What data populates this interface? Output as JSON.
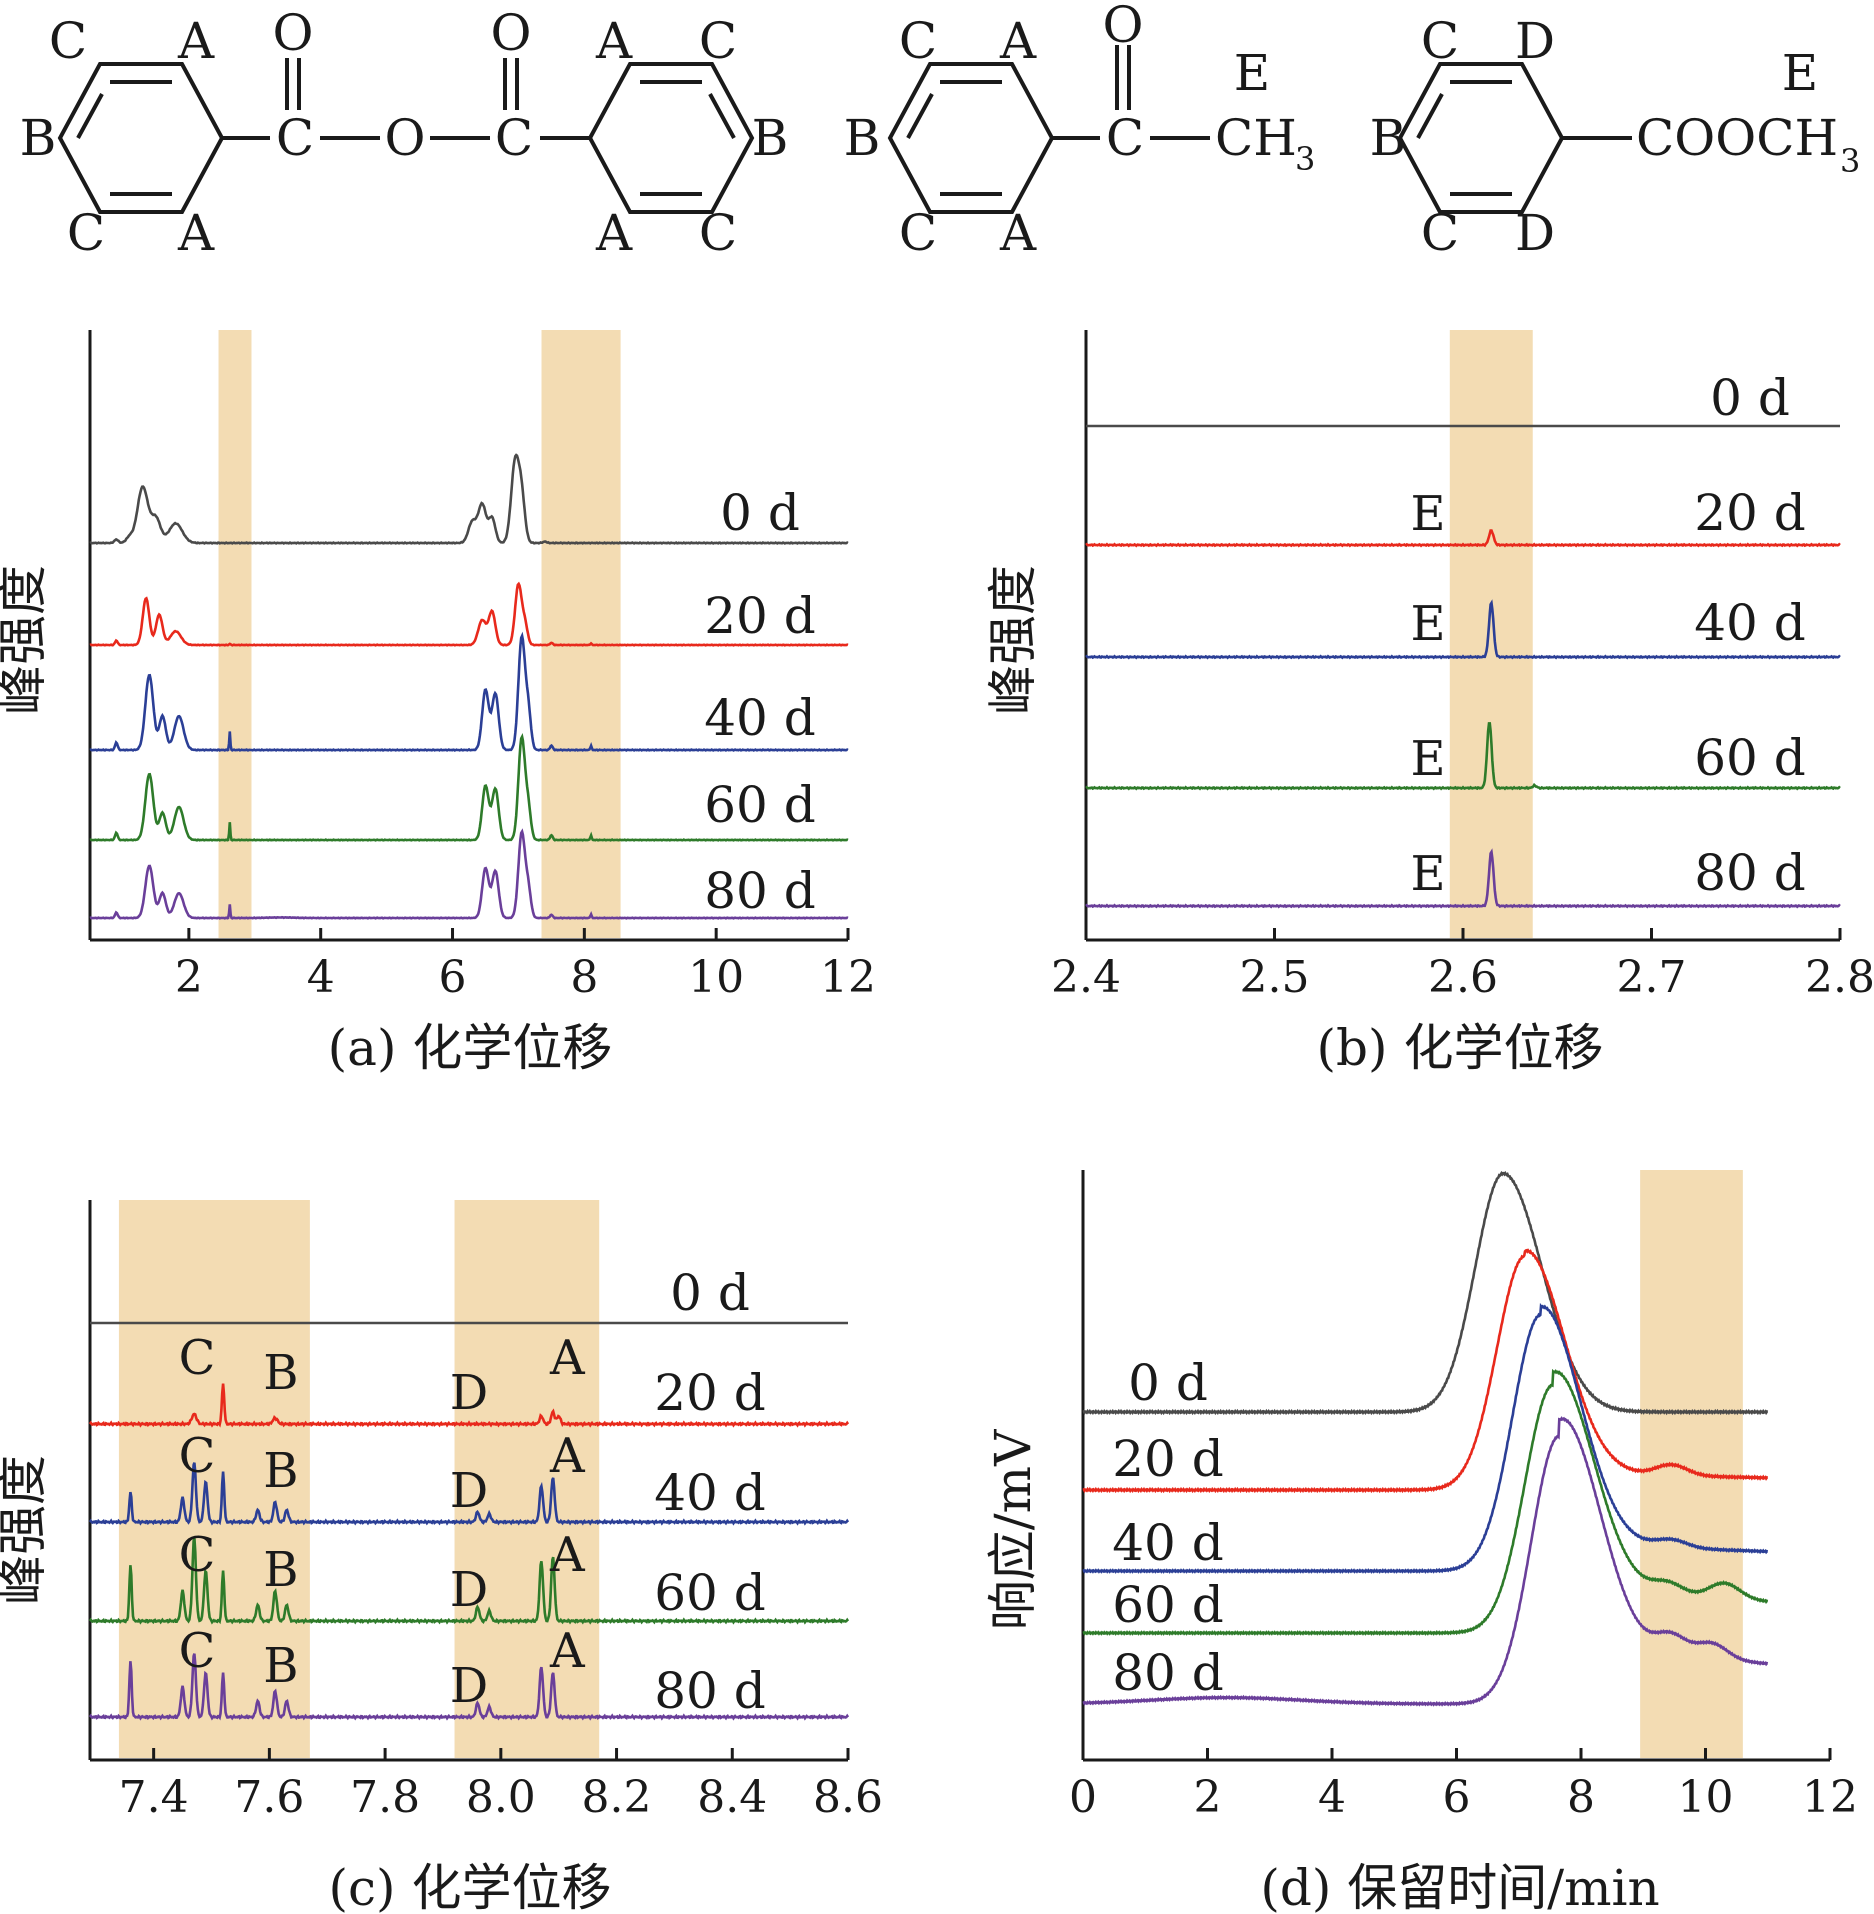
{
  "structures": [
    {
      "letters": [
        "C",
        "A",
        "B",
        "C",
        "A",
        "O",
        "O",
        "A",
        "C",
        "B",
        "A",
        "C"
      ],
      "atoms": [
        "C",
        "O",
        "C"
      ],
      "name": "benzoic-anhydride"
    },
    {
      "letters": [
        "C",
        "A",
        "B",
        "C",
        "A",
        "O",
        "E"
      ],
      "atoms": [
        "C",
        "CH",
        "3"
      ],
      "name": "acetophenone"
    },
    {
      "letters": [
        "C",
        "D",
        "B",
        "C",
        "D",
        "E"
      ],
      "atoms": [
        "COOCH",
        "3"
      ],
      "name": "methyl-benzoate"
    }
  ],
  "chart_data": [
    {
      "id": "a",
      "type": "line",
      "xlabel": "(a) 化学位移",
      "ylabel": "峰强度",
      "xlim": [
        0.5,
        12
      ],
      "xticks": [
        "2",
        "4",
        "6",
        "8",
        "10",
        "12"
      ],
      "xtick_values": [
        2,
        4,
        6,
        8,
        10,
        12
      ],
      "highlight_ranges": [
        [
          2.45,
          2.95
        ],
        [
          7.35,
          8.55
        ]
      ],
      "series": [
        {
          "name": "0 d",
          "color": "#4a4a4a",
          "offset": 0.0,
          "peaks": [
            [
              0.9,
              0.05,
              0.03
            ],
            [
              1.1,
              0.08,
              0.05
            ],
            [
              1.3,
              0.8,
              0.08
            ],
            [
              1.5,
              0.35,
              0.07
            ],
            [
              1.8,
              0.28,
              0.1
            ],
            [
              6.3,
              0.3,
              0.06
            ],
            [
              6.45,
              0.55,
              0.06
            ],
            [
              6.6,
              0.35,
              0.05
            ],
            [
              6.95,
              1.15,
              0.06
            ],
            [
              7.05,
              0.6,
              0.05
            ],
            [
              7.4,
              0.02,
              0.03
            ]
          ]
        },
        {
          "name": "20 d",
          "color": "#e8291c",
          "offset": 0.0,
          "peaks": [
            [
              0.9,
              0.08,
              0.02
            ],
            [
              1.35,
              0.85,
              0.05
            ],
            [
              1.55,
              0.55,
              0.05
            ],
            [
              1.8,
              0.25,
              0.08
            ],
            [
              2.62,
              0.02,
              0.01
            ],
            [
              6.45,
              0.45,
              0.06
            ],
            [
              6.6,
              0.6,
              0.05
            ],
            [
              7.0,
              1.1,
              0.05
            ],
            [
              7.1,
              0.35,
              0.04
            ],
            [
              7.5,
              0.04,
              0.02
            ],
            [
              8.1,
              0.03,
              0.01
            ]
          ]
        },
        {
          "name": "40 d",
          "color": "#2b3f96",
          "offset": 0.0,
          "peaks": [
            [
              0.9,
              0.1,
              0.02
            ],
            [
              1.4,
              1.0,
              0.06
            ],
            [
              1.6,
              0.45,
              0.05
            ],
            [
              1.85,
              0.45,
              0.07
            ],
            [
              2.62,
              0.25,
              0.008
            ],
            [
              6.5,
              0.8,
              0.05
            ],
            [
              6.65,
              0.75,
              0.05
            ],
            [
              7.05,
              1.5,
              0.05
            ],
            [
              7.15,
              0.5,
              0.04
            ],
            [
              7.5,
              0.06,
              0.02
            ],
            [
              8.1,
              0.06,
              0.01
            ]
          ]
        },
        {
          "name": "60 d",
          "color": "#2e7b2a",
          "offset": 0.0,
          "peaks": [
            [
              0.9,
              0.12,
              0.02
            ],
            [
              1.4,
              1.1,
              0.06
            ],
            [
              1.6,
              0.45,
              0.05
            ],
            [
              1.85,
              0.55,
              0.07
            ],
            [
              2.62,
              0.3,
              0.008
            ],
            [
              6.5,
              0.9,
              0.05
            ],
            [
              6.65,
              0.85,
              0.05
            ],
            [
              7.05,
              1.7,
              0.05
            ],
            [
              7.15,
              0.5,
              0.04
            ],
            [
              7.5,
              0.08,
              0.02
            ],
            [
              8.1,
              0.08,
              0.01
            ]
          ]
        },
        {
          "name": "80 d",
          "color": "#6a3f9a",
          "offset": 0.0,
          "peaks": [
            [
              0.9,
              0.1,
              0.02
            ],
            [
              1.4,
              0.95,
              0.06
            ],
            [
              1.6,
              0.45,
              0.05
            ],
            [
              1.85,
              0.45,
              0.07
            ],
            [
              2.62,
              0.25,
              0.008
            ],
            [
              3.4,
              0.01,
              0.2
            ],
            [
              6.5,
              0.9,
              0.05
            ],
            [
              6.65,
              0.85,
              0.05
            ],
            [
              7.05,
              1.55,
              0.05
            ],
            [
              7.15,
              0.5,
              0.04
            ],
            [
              7.5,
              0.06,
              0.02
            ],
            [
              8.1,
              0.07,
              0.01
            ]
          ]
        }
      ]
    },
    {
      "id": "b",
      "type": "line",
      "xlabel": "(b) 化学位移",
      "ylabel": "峰强度",
      "xlim": [
        2.4,
        2.8
      ],
      "xticks": [
        "2.4",
        "2.5",
        "2.6",
        "2.7",
        "2.8"
      ],
      "xtick_values": [
        2.4,
        2.5,
        2.6,
        2.7,
        2.8
      ],
      "highlight_ranges": [
        [
          2.593,
          2.637
        ]
      ],
      "series": [
        {
          "name": "0 d",
          "color": "#4a4a4a",
          "peaks": []
        },
        {
          "name": "20 d",
          "color": "#e8291c",
          "peak_label": "E",
          "peaks": [
            [
              2.615,
              0.12,
              0.0012
            ]
          ]
        },
        {
          "name": "40 d",
          "color": "#2b3f96",
          "peak_label": "E",
          "peaks": [
            [
              2.615,
              0.45,
              0.0012
            ]
          ]
        },
        {
          "name": "60 d",
          "color": "#2e7b2a",
          "peak_label": "E",
          "peaks": [
            [
              2.614,
              0.55,
              0.0012
            ],
            [
              2.638,
              0.02,
              0.001
            ]
          ]
        },
        {
          "name": "80 d",
          "color": "#6a3f9a",
          "peak_label": "E",
          "peaks": [
            [
              2.615,
              0.45,
              0.0012
            ]
          ]
        }
      ]
    },
    {
      "id": "c",
      "type": "line",
      "xlabel": "(c) 化学位移",
      "ylabel": "峰强度",
      "xlim": [
        7.29,
        8.6
      ],
      "xticks": [
        "7.4",
        "7.6",
        "7.8",
        "8.0",
        "8.2",
        "8.4",
        "8.6"
      ],
      "xtick_values": [
        7.4,
        7.6,
        7.8,
        8.0,
        8.2,
        8.4,
        8.6
      ],
      "highlight_ranges": [
        [
          7.34,
          7.67
        ],
        [
          7.92,
          8.17
        ]
      ],
      "series": [
        {
          "name": "0 d",
          "color": "#4a4a4a",
          "peak_labels": [],
          "peaks": []
        },
        {
          "name": "20 d",
          "color": "#e8291c",
          "peak_labels": [
            "C",
            "B",
            "D",
            "A"
          ],
          "peaks": [
            [
              7.47,
              0.05,
              0.004
            ],
            [
              7.52,
              0.2,
              0.002
            ],
            [
              7.61,
              0.03,
              0.004
            ],
            [
              8.07,
              0.04,
              0.003
            ],
            [
              8.09,
              0.06,
              0.003
            ],
            [
              8.1,
              0.04,
              0.003
            ]
          ]
        },
        {
          "name": "40 d",
          "color": "#2b3f96",
          "peak_labels": [
            "C",
            "B",
            "D",
            "A"
          ],
          "peaks": [
            [
              7.36,
              0.15,
              0.002
            ],
            [
              7.45,
              0.12,
              0.003
            ],
            [
              7.47,
              0.3,
              0.003
            ],
            [
              7.49,
              0.2,
              0.003
            ],
            [
              7.52,
              0.25,
              0.002
            ],
            [
              7.58,
              0.06,
              0.003
            ],
            [
              7.61,
              0.1,
              0.003
            ],
            [
              7.63,
              0.06,
              0.003
            ],
            [
              7.96,
              0.05,
              0.003
            ],
            [
              7.98,
              0.04,
              0.003
            ],
            [
              8.07,
              0.18,
              0.003
            ],
            [
              8.09,
              0.22,
              0.003
            ]
          ]
        },
        {
          "name": "60 d",
          "color": "#2e7b2a",
          "peak_labels": [
            "C",
            "B",
            "D",
            "A"
          ],
          "peaks": [
            [
              7.36,
              0.28,
              0.002
            ],
            [
              7.45,
              0.15,
              0.003
            ],
            [
              7.47,
              0.42,
              0.003
            ],
            [
              7.49,
              0.25,
              0.003
            ],
            [
              7.52,
              0.25,
              0.002
            ],
            [
              7.58,
              0.08,
              0.003
            ],
            [
              7.61,
              0.15,
              0.003
            ],
            [
              7.63,
              0.08,
              0.003
            ],
            [
              7.96,
              0.07,
              0.003
            ],
            [
              7.98,
              0.05,
              0.003
            ],
            [
              8.07,
              0.3,
              0.003
            ],
            [
              8.09,
              0.32,
              0.003
            ]
          ]
        },
        {
          "name": "80 d",
          "color": "#6a3f9a",
          "peak_labels": [
            "C",
            "B",
            "D",
            "A"
          ],
          "peaks": [
            [
              7.36,
              0.28,
              0.002
            ],
            [
              7.45,
              0.15,
              0.003
            ],
            [
              7.47,
              0.32,
              0.003
            ],
            [
              7.49,
              0.22,
              0.003
            ],
            [
              7.52,
              0.22,
              0.002
            ],
            [
              7.58,
              0.08,
              0.003
            ],
            [
              7.61,
              0.13,
              0.003
            ],
            [
              7.63,
              0.08,
              0.003
            ],
            [
              7.96,
              0.07,
              0.003
            ],
            [
              7.98,
              0.05,
              0.003
            ],
            [
              8.07,
              0.25,
              0.003
            ],
            [
              8.09,
              0.22,
              0.003
            ]
          ]
        }
      ]
    },
    {
      "id": "d",
      "type": "line",
      "xlabel": "(d) 保留时间/min",
      "ylabel": "响应/mV",
      "xlim": [
        0,
        12
      ],
      "xticks": [
        "0",
        "2",
        "4",
        "6",
        "8",
        "10",
        "12"
      ],
      "xtick_values": [
        0,
        2,
        4,
        6,
        8,
        10,
        12
      ],
      "highlight_ranges": [
        [
          8.95,
          10.6
        ]
      ],
      "series": [
        {
          "name": "0 d",
          "color": "#4a4a4a",
          "peak_center": 6.75,
          "peak_height": 2.65,
          "tail": 0.0,
          "bumps": []
        },
        {
          "name": "20 d",
          "color": "#e8291c",
          "peak_center": 7.1,
          "peak_height": 2.6,
          "tail": 0.2,
          "bumps": [
            [
              9.45,
              0.12
            ]
          ]
        },
        {
          "name": "40 d",
          "color": "#2b3f96",
          "peak_center": 7.35,
          "peak_height": 3.2,
          "tail": 0.35,
          "bumps": [
            [
              9.45,
              0.1
            ]
          ]
        },
        {
          "name": "60 d",
          "color": "#2e7b2a",
          "peak_center": 7.55,
          "peak_height": 3.1,
          "tail": 0.55,
          "bumps": [
            [
              9.4,
              0.15
            ],
            [
              10.3,
              0.2
            ]
          ]
        },
        {
          "name": "80 d",
          "color": "#6a3f9a",
          "peak_center": 7.65,
          "peak_height": 3.35,
          "tail": 0.7,
          "bumps": [
            [
              9.45,
              0.25
            ],
            [
              10.1,
              0.2
            ]
          ]
        }
      ]
    }
  ]
}
